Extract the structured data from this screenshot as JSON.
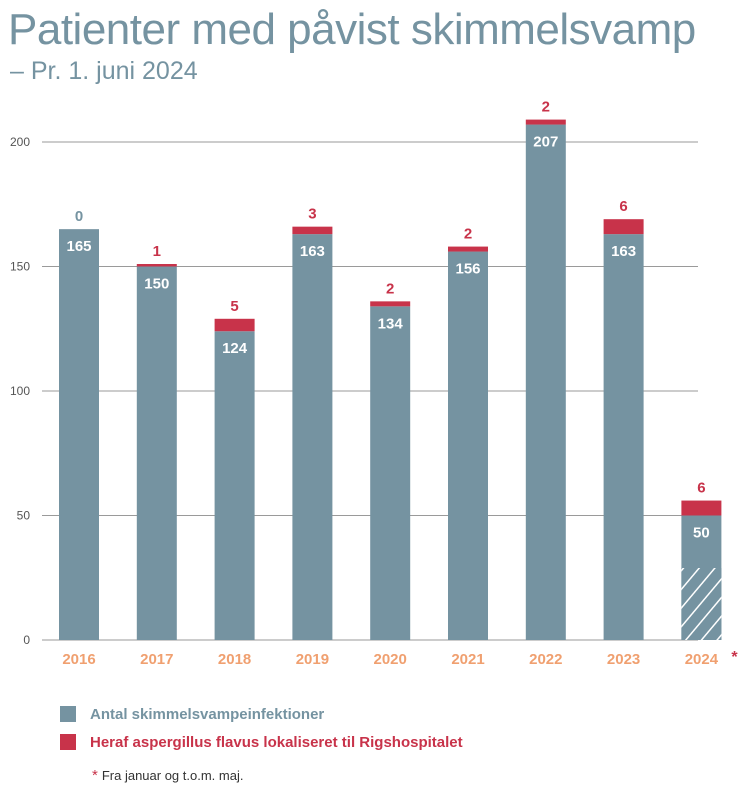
{
  "title": "Patienter med påvist skimmelsvamp",
  "subtitle": "– Pr. 1. juni 2024",
  "colors": {
    "base": "#7593A1",
    "highlight": "#C8334A",
    "year_label": "#F0A070",
    "grid": "#9A9A9A",
    "hatch": "#FFFFFF"
  },
  "chart_data": {
    "type": "bar",
    "stacked": true,
    "categories": [
      "2016",
      "2017",
      "2018",
      "2019",
      "2020",
      "2021",
      "2022",
      "2023",
      "2024"
    ],
    "series": [
      {
        "name": "Antal skimmelsvampeinfektioner",
        "values": [
          165,
          150,
          124,
          163,
          134,
          156,
          207,
          163,
          50
        ],
        "color": "#7593A1"
      },
      {
        "name": "Heraf aspergillus flavus lokaliseret til Rigshospitalet",
        "values": [
          0,
          1,
          5,
          3,
          2,
          2,
          2,
          6,
          6
        ],
        "color": "#C8334A"
      }
    ],
    "ylim": [
      0,
      200
    ],
    "yticks": [
      0,
      50,
      100,
      150,
      200
    ],
    "grid": true,
    "hatched_category": "2024",
    "category_marker": "*",
    "legend_position": "bottom-left"
  },
  "legend": {
    "items": [
      {
        "label": "Antal skimmelsvampeinfektioner",
        "color": "#7593A1"
      },
      {
        "label": "Heraf aspergillus flavus lokaliseret til Rigshospitalet",
        "color": "#C8334A"
      }
    ]
  },
  "footnote": {
    "marker": "*",
    "text": "Fra januar og t.o.m. maj."
  }
}
